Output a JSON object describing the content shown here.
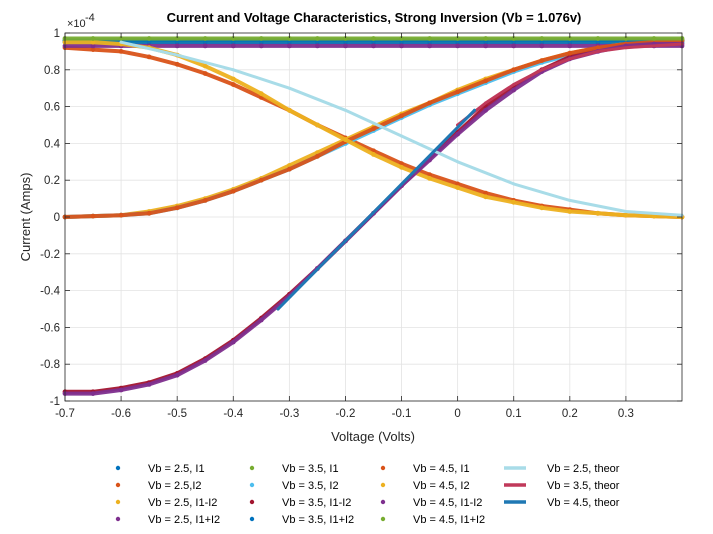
{
  "chart_data": {
    "type": "scatter",
    "title": "Current and Voltage Characteristics, Strong Inversion (Vb = 1.076v)",
    "xlabel": "Voltage (Volts)",
    "ylabel": "Current (Amps)",
    "y_exponent_base": "×10",
    "y_exponent_power": "-4",
    "xlim": [
      -0.7,
      0.4
    ],
    "ylim": [
      -1,
      1
    ],
    "xticks": [
      -0.7,
      -0.6,
      -0.5,
      -0.4,
      -0.3,
      -0.2,
      -0.1,
      0,
      0.1,
      0.2,
      0.3
    ],
    "xtick_labels": [
      "-0.7",
      "-0.6",
      "-0.5",
      "-0.4",
      "-0.3",
      "-0.2",
      "-0.1",
      "0",
      "0.1",
      "0.2",
      "0.3"
    ],
    "yticks": [
      -1,
      -0.8,
      -0.6,
      -0.4,
      -0.2,
      0,
      0.2,
      0.4,
      0.6,
      0.8,
      1
    ],
    "ytick_labels": [
      "-1",
      "-0.8",
      "-0.6",
      "-0.4",
      "-0.2",
      "0",
      "0.2",
      "0.4",
      "0.6",
      "0.8",
      "1"
    ],
    "grid": true,
    "legend_position": "bottom",
    "x": [
      -0.7,
      -0.65,
      -0.6,
      -0.55,
      -0.5,
      -0.45,
      -0.4,
      -0.35,
      -0.3,
      -0.25,
      -0.2,
      -0.15,
      -0.1,
      -0.05,
      0,
      0.05,
      0.1,
      0.15,
      0.2,
      0.25,
      0.3,
      0.35,
      0.4
    ],
    "series": [
      {
        "name": "Vb = 2.5, I1",
        "style": "dots",
        "color": "#0072BD",
        "values": [
          0.95,
          0.95,
          0.95,
          0.95,
          0.95,
          0.95,
          0.95,
          0.95,
          0.95,
          0.95,
          0.95,
          0.95,
          0.95,
          0.95,
          0.95,
          0.95,
          0.95,
          0.95,
          0.95,
          0.95,
          0.95,
          0.95,
          0.95
        ]
      },
      {
        "name": "Vb = 2.5,I2",
        "style": "dots",
        "color": "#D95319",
        "values": [
          0.92,
          0.91,
          0.9,
          0.87,
          0.83,
          0.78,
          0.72,
          0.65,
          0.58,
          0.5,
          0.43,
          0.36,
          0.29,
          0.23,
          0.18,
          0.13,
          0.09,
          0.06,
          0.04,
          0.02,
          0.01,
          0.005,
          0.0
        ]
      },
      {
        "name": "Vb = 2.5, I1-I2",
        "style": "dots",
        "color": "#EDB120",
        "values": [
          0.0,
          0.005,
          0.01,
          0.03,
          0.06,
          0.1,
          0.15,
          0.21,
          0.28,
          0.35,
          0.42,
          0.49,
          0.56,
          0.62,
          0.69,
          0.75,
          0.8,
          0.85,
          0.89,
          0.92,
          0.94,
          0.95,
          0.95
        ]
      },
      {
        "name": "Vb = 2.5, I1+I2",
        "style": "dots",
        "color": "#7E2F8E",
        "values": [
          0.93,
          0.93,
          0.93,
          0.93,
          0.93,
          0.93,
          0.93,
          0.93,
          0.93,
          0.93,
          0.93,
          0.93,
          0.93,
          0.93,
          0.93,
          0.93,
          0.93,
          0.93,
          0.93,
          0.93,
          0.93,
          0.93,
          0.93
        ]
      },
      {
        "name": "Vb = 3.5, I1",
        "style": "dots",
        "color": "#77AC30",
        "values": [
          0.96,
          0.96,
          0.96,
          0.96,
          0.96,
          0.96,
          0.96,
          0.96,
          0.96,
          0.96,
          0.96,
          0.96,
          0.96,
          0.96,
          0.96,
          0.96,
          0.96,
          0.96,
          0.96,
          0.96,
          0.96,
          0.96,
          0.96
        ]
      },
      {
        "name": "Vb = 3.5, I2",
        "style": "dots",
        "color": "#4DBEEE",
        "values": [
          0.0,
          0.005,
          0.01,
          0.02,
          0.05,
          0.09,
          0.14,
          0.2,
          0.26,
          0.33,
          0.4,
          0.47,
          0.54,
          0.61,
          0.67,
          0.73,
          0.79,
          0.84,
          0.88,
          0.91,
          0.93,
          0.94,
          0.95
        ]
      },
      {
        "name": "Vb = 3.5, I1-I2",
        "style": "dots",
        "color": "#A2142F",
        "values": [
          -0.95,
          -0.95,
          -0.93,
          -0.9,
          -0.85,
          -0.77,
          -0.67,
          -0.55,
          -0.42,
          -0.28,
          -0.13,
          0.02,
          0.17,
          0.32,
          0.46,
          0.6,
          0.71,
          0.8,
          0.87,
          0.91,
          0.94,
          0.95,
          0.96
        ]
      },
      {
        "name": "Vb = 3.5, I1+I2",
        "style": "dots",
        "color": "#0072BD",
        "values": [
          0.96,
          0.96,
          0.96,
          0.96,
          0.96,
          0.96,
          0.96,
          0.96,
          0.96,
          0.96,
          0.96,
          0.96,
          0.96,
          0.96,
          0.96,
          0.96,
          0.96,
          0.96,
          0.96,
          0.96,
          0.96,
          0.96,
          0.96
        ]
      },
      {
        "name": "Vb = 4.5, I1",
        "style": "dots",
        "color": "#D95319",
        "values": [
          0.0,
          0.005,
          0.01,
          0.02,
          0.05,
          0.09,
          0.14,
          0.2,
          0.26,
          0.33,
          0.41,
          0.48,
          0.55,
          0.62,
          0.68,
          0.74,
          0.8,
          0.85,
          0.89,
          0.92,
          0.94,
          0.95,
          0.96
        ]
      },
      {
        "name": "Vb = 4.5, I2",
        "style": "dots",
        "color": "#EDB120",
        "values": [
          0.95,
          0.95,
          0.94,
          0.92,
          0.88,
          0.82,
          0.75,
          0.67,
          0.58,
          0.5,
          0.42,
          0.34,
          0.27,
          0.21,
          0.16,
          0.11,
          0.08,
          0.05,
          0.03,
          0.02,
          0.01,
          0.005,
          0.0
        ]
      },
      {
        "name": "Vb = 4.5, I1-I2",
        "style": "dots",
        "color": "#7E2F8E",
        "values": [
          -0.96,
          -0.96,
          -0.94,
          -0.91,
          -0.86,
          -0.78,
          -0.68,
          -0.56,
          -0.43,
          -0.28,
          -0.13,
          0.02,
          0.17,
          0.31,
          0.45,
          0.58,
          0.69,
          0.79,
          0.86,
          0.9,
          0.93,
          0.94,
          0.94
        ]
      },
      {
        "name": "Vb = 4.5, I1+I2",
        "style": "dots",
        "color": "#77AC30",
        "values": [
          0.97,
          0.97,
          0.97,
          0.97,
          0.97,
          0.97,
          0.97,
          0.97,
          0.97,
          0.97,
          0.97,
          0.97,
          0.97,
          0.97,
          0.97,
          0.97,
          0.97,
          0.97,
          0.97,
          0.97,
          0.97,
          0.97,
          0.97
        ]
      },
      {
        "name": "Vb = 2.5, theor",
        "style": "line",
        "color": "#A8DCE8",
        "x": [
          -0.6,
          -0.5,
          -0.4,
          -0.3,
          -0.2,
          -0.1,
          0.0,
          0.1,
          0.2,
          0.3,
          0.4
        ],
        "values": [
          0.95,
          0.88,
          0.8,
          0.7,
          0.58,
          0.44,
          0.3,
          0.18,
          0.09,
          0.03,
          0.01
        ]
      },
      {
        "name": "Vb = 3.5, theor",
        "style": "line",
        "color": "#C0395A",
        "x": [
          -0.0,
          0.05,
          0.1,
          0.15,
          0.2,
          0.25,
          0.3,
          0.35,
          0.4
        ],
        "values": [
          0.5,
          0.62,
          0.72,
          0.8,
          0.86,
          0.9,
          0.92,
          0.93,
          0.94
        ]
      },
      {
        "name": "Vb = 4.5, theor",
        "style": "line",
        "color": "#1F78B4",
        "x": [
          -0.32,
          0.03
        ],
        "values": [
          -0.5,
          0.58
        ]
      }
    ]
  }
}
